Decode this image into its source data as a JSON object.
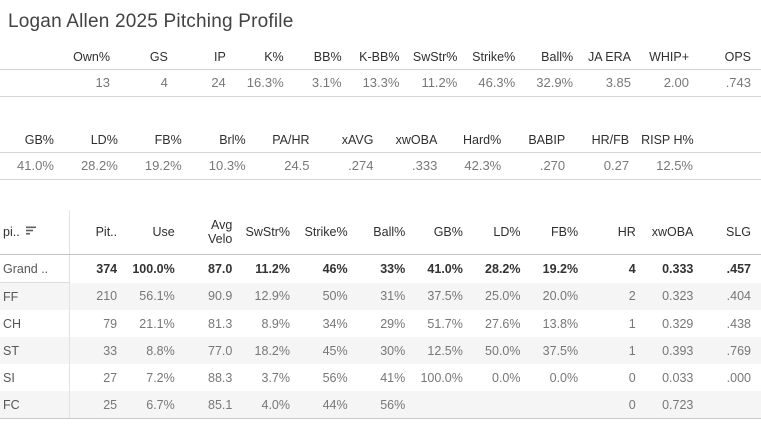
{
  "title": "Logan Allen 2025 Pitching Profile",
  "summary_table_1": {
    "columns": [
      "Own%",
      "GS",
      "IP",
      "K%",
      "BB%",
      "K-BB%",
      "SwStr%",
      "Strike%",
      "Ball%",
      "JA ERA",
      "WHIP+",
      "OPS"
    ],
    "values": [
      "13",
      "4",
      "24",
      "16.3%",
      "3.1%",
      "13.3%",
      "11.2%",
      "46.3%",
      "32.9%",
      "3.85",
      "2.00",
      ".743"
    ]
  },
  "summary_table_2": {
    "columns": [
      "GB%",
      "LD%",
      "FB%",
      "Brl%",
      "PA/HR",
      "xAVG",
      "xwOBA",
      "Hard%",
      "BABIP",
      "HR/FB",
      "RISP H%"
    ],
    "values": [
      "41.0%",
      "28.2%",
      "19.2%",
      "10.3%",
      "24.5",
      ".274",
      ".333",
      "42.3%",
      ".270",
      "0.27",
      "12.5%"
    ]
  },
  "pitch_table": {
    "sort_icon": "sort-descending-icon",
    "columns": [
      "pi..",
      "Pit..",
      "Use",
      "Avg\nVelo",
      "SwStr%",
      "Strike%",
      "Ball%",
      "GB%",
      "LD%",
      "FB%",
      "HR",
      "xwOBA",
      "SLG"
    ],
    "rows": [
      {
        "label": "Grand ..",
        "cells": [
          "374",
          "100.0%",
          "87.0",
          "11.2%",
          "46%",
          "33%",
          "41.0%",
          "28.2%",
          "19.2%",
          "4",
          "0.333",
          ".457"
        ]
      },
      {
        "label": "FF",
        "cells": [
          "210",
          "56.1%",
          "90.9",
          "12.9%",
          "50%",
          "31%",
          "37.5%",
          "25.0%",
          "20.0%",
          "2",
          "0.323",
          ".404"
        ]
      },
      {
        "label": "CH",
        "cells": [
          "79",
          "21.1%",
          "81.3",
          "8.9%",
          "34%",
          "29%",
          "51.7%",
          "27.6%",
          "13.8%",
          "1",
          "0.329",
          ".438"
        ]
      },
      {
        "label": "ST",
        "cells": [
          "33",
          "8.8%",
          "77.0",
          "18.2%",
          "45%",
          "30%",
          "12.5%",
          "50.0%",
          "37.5%",
          "1",
          "0.393",
          ".769"
        ]
      },
      {
        "label": "SI",
        "cells": [
          "27",
          "7.2%",
          "88.3",
          "3.7%",
          "56%",
          "41%",
          "100.0%",
          "0.0%",
          "0.0%",
          "0",
          "0.033",
          ".000"
        ]
      },
      {
        "label": "FC",
        "cells": [
          "25",
          "6.7%",
          "85.1",
          "4.0%",
          "44%",
          "56%",
          "",
          "",
          "",
          "0",
          "0.723",
          ""
        ]
      }
    ]
  },
  "colors": {
    "title_text": "#424242",
    "header_text": "#2f2f2f",
    "value_text": "#787878",
    "grand_row_text": "#333333",
    "row_stripe": "#f5f5f5",
    "divider": "#d4d4d4"
  }
}
